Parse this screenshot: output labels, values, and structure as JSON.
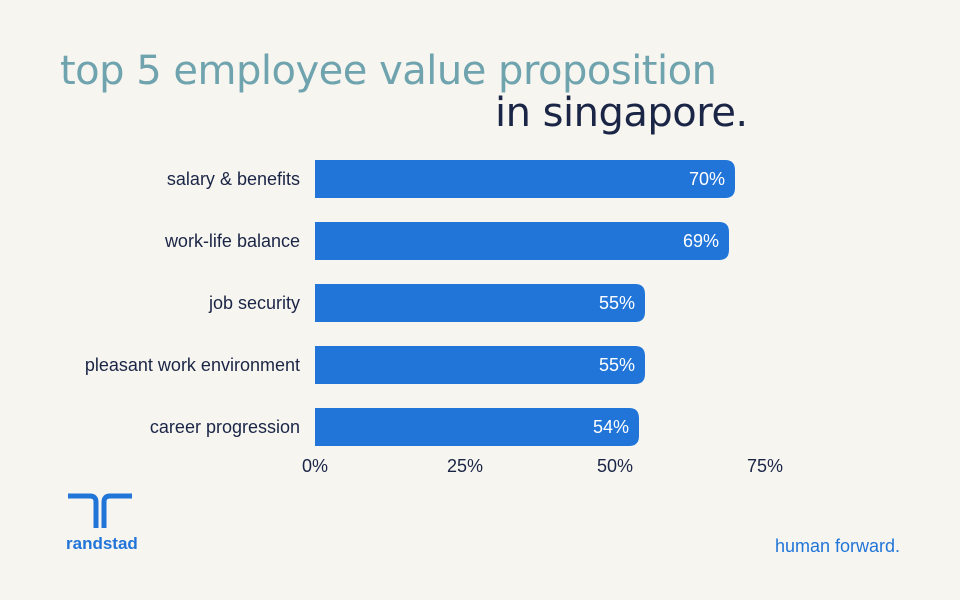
{
  "colors": {
    "background": "#f6f5f0",
    "title_primary": "#6fa3ae",
    "title_secondary": "#1b2546",
    "bar": "#2175d9",
    "bar_label": "#ffffff",
    "text": "#1b2546",
    "brand": "#2175d9"
  },
  "header": {
    "title_line1": "top 5 employee value proposition",
    "title_line2": "in singapore."
  },
  "chart_data": {
    "type": "bar",
    "orientation": "horizontal",
    "categories": [
      "salary & benefits",
      "work-life balance",
      "job security",
      "pleasant work environment",
      "career progression"
    ],
    "values": [
      70,
      69,
      55,
      55,
      54
    ],
    "value_labels": [
      "70%",
      "69%",
      "55%",
      "55%",
      "54%"
    ],
    "xticks": [
      0,
      25,
      50,
      75
    ],
    "xtick_labels": [
      "0%",
      "25%",
      "50%",
      "75%"
    ],
    "xlim": [
      0,
      75
    ],
    "grid": false
  },
  "footer": {
    "brand_name": "randstad",
    "logo_icon": "randstad-logo-icon",
    "tagline": "human forward."
  }
}
